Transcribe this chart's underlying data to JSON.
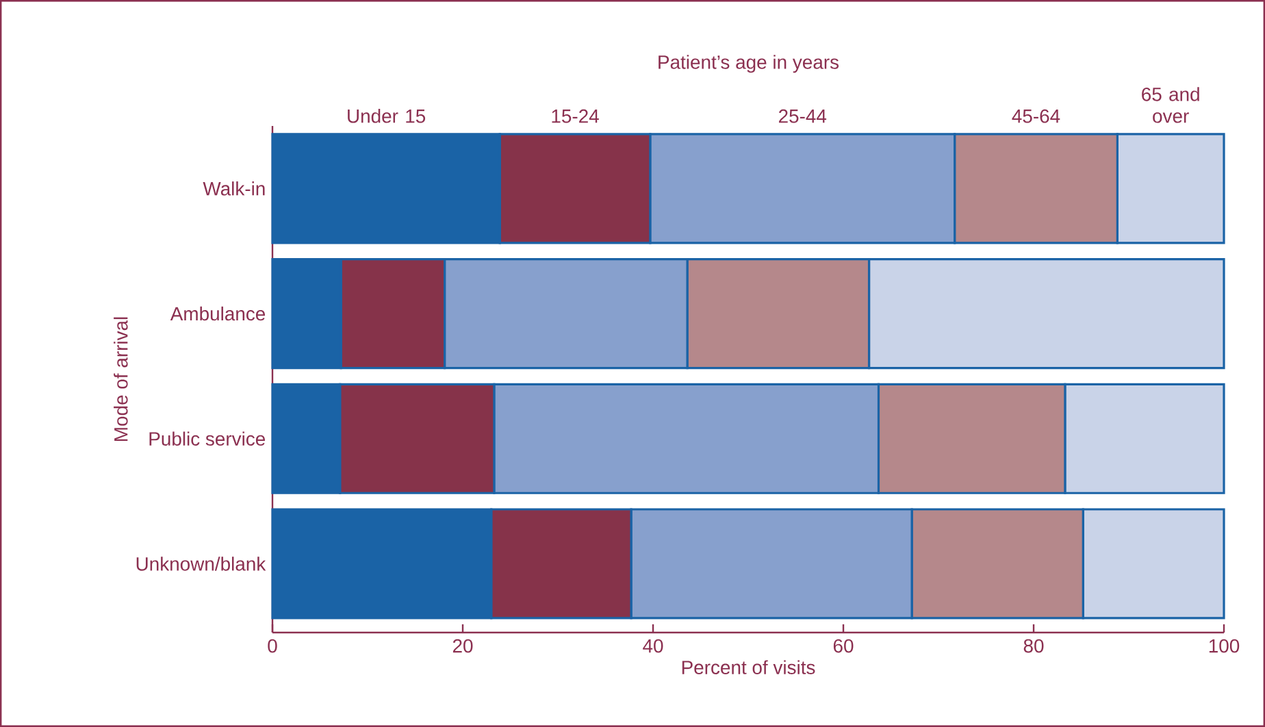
{
  "chart_data": {
    "type": "bar",
    "orientation": "horizontal",
    "stacked": true,
    "xlabel": "Percent of visits",
    "ylabel": "Mode of arrival",
    "legend_title": "Patient’s age in years",
    "legend": "top",
    "categories": [
      "Walk-in",
      "Ambulance",
      "Public service",
      "Unknown/blank"
    ],
    "series": [
      {
        "name": "Under 15",
        "color": "#1a63a6",
        "values": [
          23.9,
          7.2,
          7.1,
          23.0
        ]
      },
      {
        "name": "15-24",
        "color": "#86334a",
        "values": [
          15.8,
          10.9,
          16.2,
          14.7
        ]
      },
      {
        "name": "25-44",
        "color": "#87a0cd",
        "values": [
          32.0,
          25.5,
          40.4,
          29.5
        ]
      },
      {
        "name": "45-64",
        "color": "#b5888b",
        "values": [
          17.1,
          19.1,
          19.6,
          18.0
        ]
      },
      {
        "name": "65 and over",
        "color": "#c9d3e8",
        "values": [
          11.2,
          37.3,
          16.7,
          14.8
        ]
      }
    ],
    "xlim": [
      0,
      100
    ],
    "xticks": [
      0,
      20,
      40,
      60,
      80,
      100
    ],
    "grid": false
  }
}
